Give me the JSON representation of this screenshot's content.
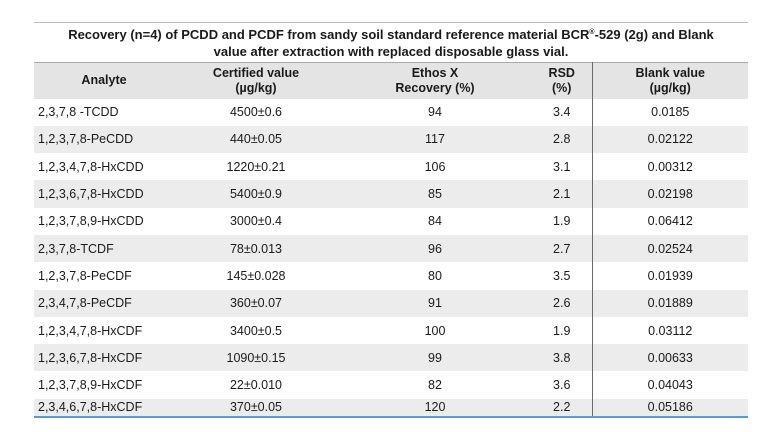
{
  "caption": {
    "line1_prefix": "Recovery (n=4) of PCDD and PCDF from sandy soil standard reference material BCR",
    "registered_mark": "®",
    "line1_suffix": "-529 (2g) and Blank",
    "line2": "value after extraction with replaced disposable glass vial."
  },
  "headers": {
    "analyte": "Analyte",
    "certified_line1": "Certified value",
    "certified_line2": "(µg/kg)",
    "recovery_line1": "Ethos X",
    "recovery_line2": "Recovery (%)",
    "rsd_line1": "RSD",
    "rsd_line2": "(%)",
    "blank_line1": "Blank value",
    "blank_line2": "(µg/kg)"
  },
  "rows": [
    {
      "analyte": "2,3,7,8 -TCDD",
      "certified": "4500±0.6",
      "recovery": "94",
      "rsd": "3.4",
      "blank": "0.0185"
    },
    {
      "analyte": "1,2,3,7,8-PeCDD",
      "certified": "440±0.05",
      "recovery": "117",
      "rsd": "2.8",
      "blank": "0.02122"
    },
    {
      "analyte": "1,2,3,4,7,8-HxCDD",
      "certified": "1220±0.21",
      "recovery": "106",
      "rsd": "3.1",
      "blank": "0.00312"
    },
    {
      "analyte": "1,2,3,6,7,8-HxCDD",
      "certified": "5400±0.9",
      "recovery": "85",
      "rsd": "2.1",
      "blank": "0.02198"
    },
    {
      "analyte": "1,2,3,7,8,9-HxCDD",
      "certified": "3000±0.4",
      "recovery": "84",
      "rsd": "1.9",
      "blank": "0.06412"
    },
    {
      "analyte": "2,3,7,8-TCDF",
      "certified": "78±0.013",
      "recovery": "96",
      "rsd": "2.7",
      "blank": "0.02524"
    },
    {
      "analyte": "1,2,3,7,8-PeCDF",
      "certified": "145±0.028",
      "recovery": "80",
      "rsd": "3.5",
      "blank": "0.01939"
    },
    {
      "analyte": "2,3,4,7,8-PeCDF",
      "certified": "360±0.07",
      "recovery": "91",
      "rsd": "2.6",
      "blank": "0.01889"
    },
    {
      "analyte": "1,2,3,4,7,8-HxCDF",
      "certified": "3400±0.5",
      "recovery": "100",
      "rsd": "1.9",
      "blank": "0.03112"
    },
    {
      "analyte": "1,2,3,6,7,8-HxCDF",
      "certified": "1090±0.15",
      "recovery": "99",
      "rsd": "3.8",
      "blank": "0.00633"
    },
    {
      "analyte": "1,2,3,7,8,9-HxCDF",
      "certified": "22±0.010",
      "recovery": "82",
      "rsd": "3.6",
      "blank": "0.04043"
    },
    {
      "analyte": "2,3,4,6,7,8-HxCDF",
      "certified": "370±0.05",
      "recovery": "120",
      "rsd": "2.2",
      "blank": "0.05186"
    }
  ],
  "colors": {
    "header_bg": "#e4e4e4",
    "stripe_bg": "#ececec",
    "bottom_rule": "#5b9bd5",
    "separator": "#6a6a6a"
  }
}
